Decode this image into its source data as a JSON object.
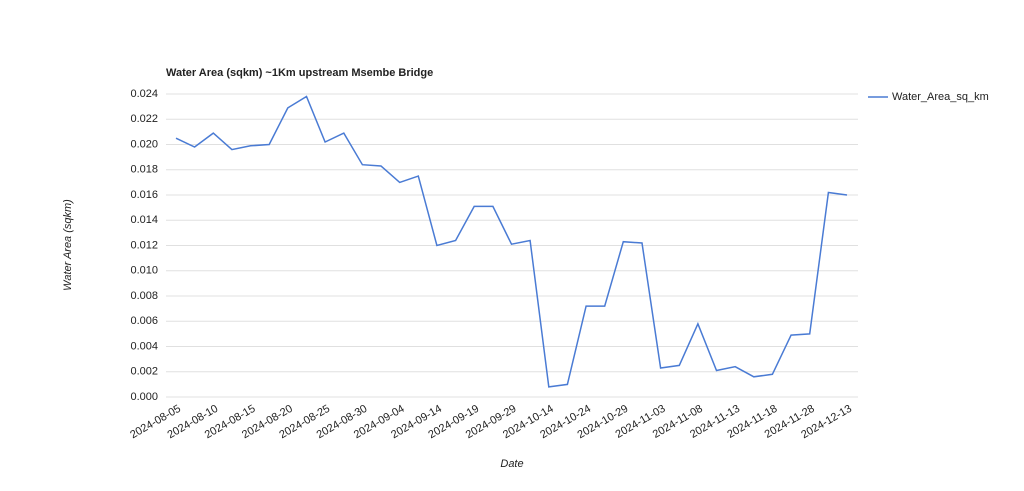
{
  "chart_data": {
    "type": "line",
    "title": "Water Area (sqkm) ~1Km upstream Msembe Bridge",
    "x_label": "Date",
    "y_label": "Water Area (sqkm)",
    "categories": [
      "2024-08-05",
      null,
      "2024-08-10",
      null,
      "2024-08-15",
      null,
      "2024-08-20",
      null,
      "2024-08-25",
      null,
      "2024-08-30",
      null,
      "2024-09-04",
      null,
      "2024-09-14",
      null,
      "2024-09-19",
      null,
      "2024-09-29",
      null,
      "2024-10-14",
      null,
      "2024-10-24",
      null,
      "2024-10-29",
      null,
      "2024-11-03",
      null,
      "2024-11-08",
      null,
      "2024-11-13",
      null,
      "2024-11-18",
      null,
      "2024-11-28",
      null,
      "2024-12-13"
    ],
    "series": [
      {
        "name": "Water_Area_sq_km",
        "color": "#4a7bd4",
        "values": [
          0.0205,
          0.0198,
          0.0209,
          0.0196,
          0.0199,
          0.02,
          0.0229,
          0.0238,
          0.0202,
          0.0209,
          0.0184,
          0.0183,
          0.017,
          0.0175,
          0.012,
          0.0124,
          0.0151,
          0.0151,
          0.0121,
          0.0124,
          0.0008,
          0.001,
          0.0072,
          0.0072,
          0.0123,
          0.0122,
          0.0023,
          0.0025,
          0.0058,
          0.0021,
          0.0024,
          0.0016,
          0.0018,
          0.0049,
          0.005,
          0.0162,
          0.016
        ]
      }
    ],
    "ylim": [
      0,
      0.024
    ],
    "yticks": [
      {
        "value": 0,
        "label": "0.000"
      },
      {
        "value": 0.002,
        "label": "0.002"
      },
      {
        "value": 0.004,
        "label": "0.004"
      },
      {
        "value": 0.006,
        "label": "0.006"
      },
      {
        "value": 0.008,
        "label": "0.008"
      },
      {
        "value": 0.01,
        "label": "0.010"
      },
      {
        "value": 0.012,
        "label": "0.012"
      },
      {
        "value": 0.014,
        "label": "0.014"
      },
      {
        "value": 0.016,
        "label": "0.016"
      },
      {
        "value": 0.018,
        "label": "0.018"
      },
      {
        "value": 0.02,
        "label": "0.020"
      },
      {
        "value": 0.022,
        "label": "0.022"
      },
      {
        "value": 0.024,
        "label": "0.024"
      }
    ],
    "grid": true,
    "legend": "right"
  }
}
